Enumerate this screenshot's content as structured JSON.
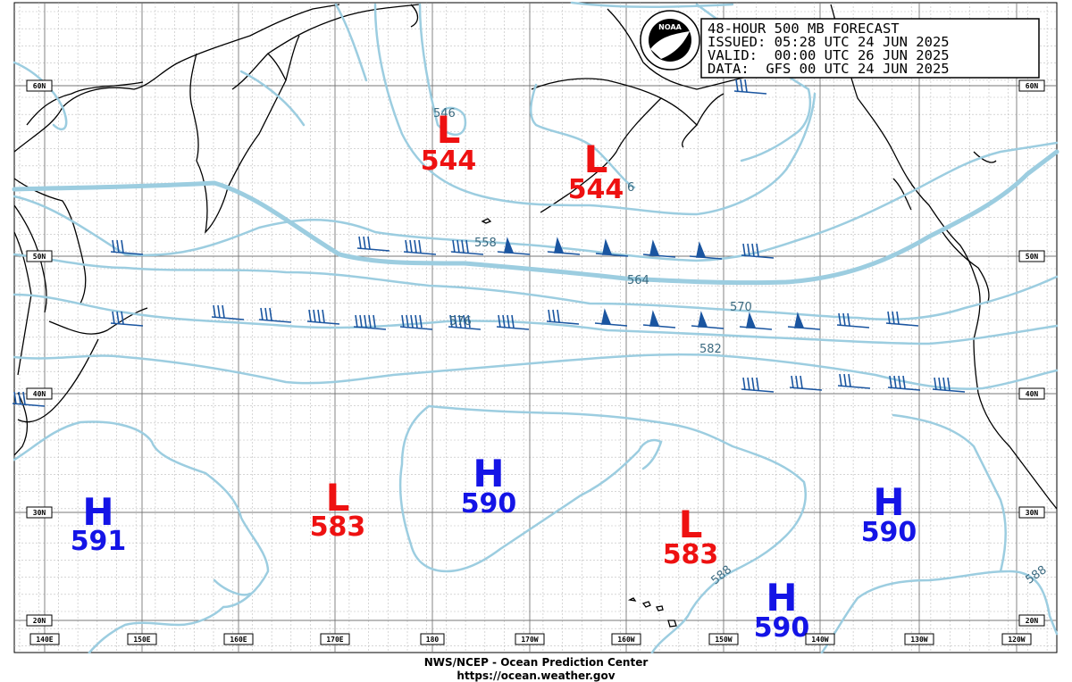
{
  "header": {
    "line1": "48-HOUR 500 MB FORECAST",
    "line2": "ISSUED: 05:28 UTC 24 JUN 2025",
    "line3": "VALID:  00:00 UTC 26 JUN 2025",
    "line4": "DATA:  GFS 00 UTC 24 JUN 2025"
  },
  "logo": {
    "text": "NOAA"
  },
  "footer": {
    "line1": "NWS/NCEP - Ocean Prediction Center",
    "line2": "https://ocean.weather.gov"
  },
  "lat_labels": [
    "60N",
    "50N",
    "40N",
    "30N",
    "20N"
  ],
  "lon_labels": [
    "140E",
    "150E",
    "160E",
    "170E",
    "180",
    "170W",
    "160W",
    "150W",
    "140W",
    "130W",
    "120W"
  ],
  "contour_labels": [
    "546",
    "6",
    "558",
    "564",
    "570",
    "576",
    "582",
    "588",
    "588"
  ],
  "systems": [
    {
      "type": "L",
      "value": "544"
    },
    {
      "type": "L",
      "value": "544"
    },
    {
      "type": "H",
      "value": "591"
    },
    {
      "type": "L",
      "value": "583"
    },
    {
      "type": "H",
      "value": "590"
    },
    {
      "type": "L",
      "value": "583"
    },
    {
      "type": "H",
      "value": "590"
    },
    {
      "type": "H",
      "value": "590"
    }
  ],
  "colors": {
    "contour": "#9ccde0",
    "low": "#ee1111",
    "high": "#1414e6",
    "barb": "#1a55a0",
    "grid": "#888888"
  }
}
